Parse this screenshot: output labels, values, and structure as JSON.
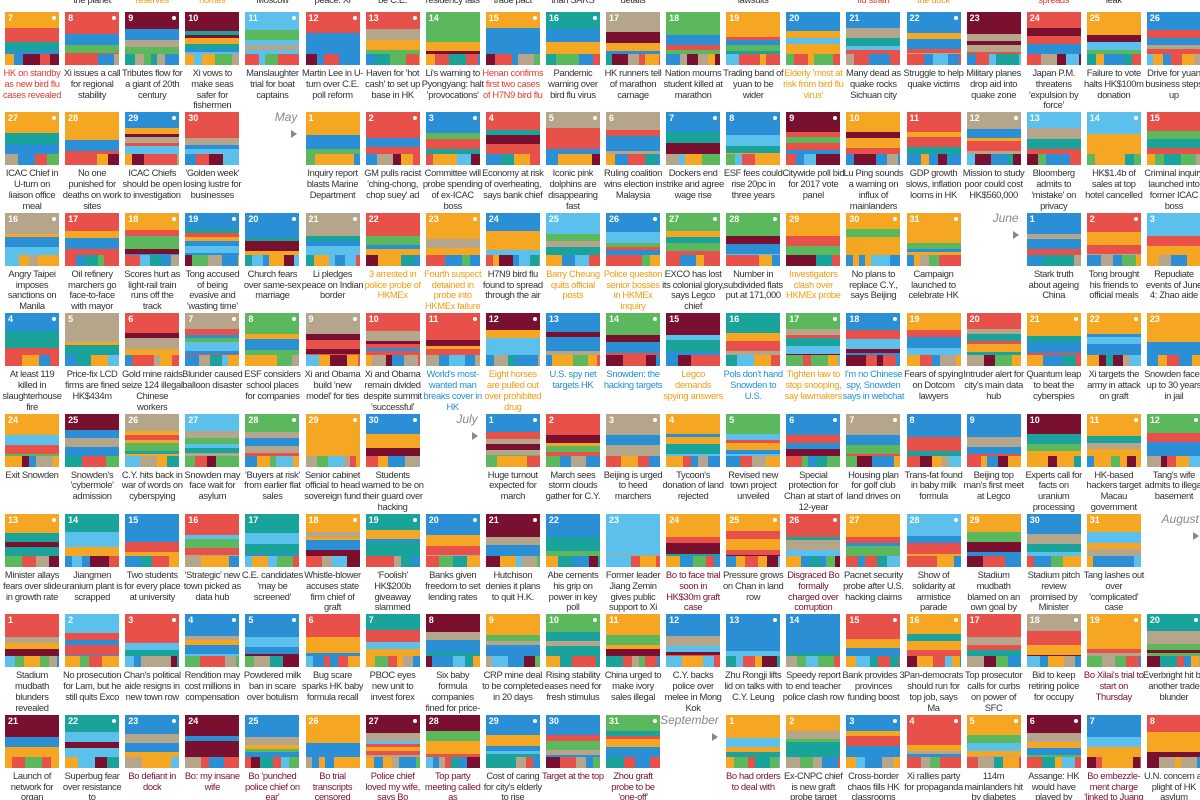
{
  "top_row": [
    null,
    {
      "caption": "the planet"
    },
    {
      "caption": "reserves",
      "color": "#f39c12"
    },
    {
      "caption": "homes",
      "color": "#f39c12"
    },
    {
      "caption": "Moscow"
    },
    {
      "caption": "peace: Xi"
    },
    {
      "caption": "be C.E."
    },
    {
      "caption": "residency fails"
    },
    {
      "caption": "trade pact"
    },
    {
      "caption": "than SARS"
    },
    {
      "caption": "details"
    },
    null,
    {
      "caption": "lawsuits"
    },
    null,
    {
      "caption": "flu strain",
      "color": "#e03c31"
    },
    {
      "caption": "the dock",
      "color": "#f39c12"
    },
    null,
    {
      "caption": "spreads",
      "color": "#e03c31"
    },
    {
      "caption": "leak"
    },
    null
  ],
  "rows": [
    [
      {
        "day": 7,
        "caption": "HK on standby as new bird flu cases revealed",
        "color": "#e03c31"
      },
      {
        "day": 8,
        "caption": "Xi issues a call for regional stability"
      },
      {
        "day": 9,
        "caption": "Tributes flow for a giant of 20th century"
      },
      {
        "day": 10,
        "caption": "Xi vows to make seas safer for fishermen"
      },
      {
        "day": 11,
        "caption": "Manslaughter trial for boat captains"
      },
      {
        "day": 12,
        "caption": "Martin Lee in U-turn over C.E. poll reform"
      },
      {
        "day": 13,
        "caption": "Haven for 'hot cash' to set up base in HK"
      },
      {
        "day": 14,
        "caption": "Li's warning to Pyongyang: halt 'provocations'"
      },
      {
        "day": 15,
        "caption": "Henan confirms first two cases of H7N9 bird flu",
        "color": "#e03c31"
      },
      {
        "day": 16,
        "caption": "Pandemic warning over bird flu virus"
      },
      {
        "day": 17,
        "caption": "HK runners tell of marathon carnage"
      },
      {
        "day": 18,
        "caption": "Nation mourns student killed at marathon"
      },
      {
        "day": 19,
        "caption": "Trading band of yuan to be wider"
      },
      {
        "day": 20,
        "caption": "Elderly 'most at risk from bird flu virus'",
        "color": "#f39c12"
      },
      {
        "day": 21,
        "caption": "Many dead as quake rocks Sichuan city"
      },
      {
        "day": 22,
        "caption": "Struggle to help quake victims"
      },
      {
        "day": 23,
        "caption": "Military planes drop aid into quake zone"
      },
      {
        "day": 24,
        "caption": "Japan P.M. threatens 'expulsion by force'"
      },
      {
        "day": 25,
        "caption": "Failure to vote halts HK$100m donation"
      },
      {
        "day": 26,
        "caption": "Drive for yuan business steps up"
      }
    ],
    [
      {
        "day": 27,
        "caption": "ICAC Chief in U-turn on liaison office meal"
      },
      {
        "day": 28,
        "caption": "No one punished for deaths on work sites"
      },
      {
        "day": 29,
        "caption": "ICAC Chiefs should be open to investigation"
      },
      {
        "day": 30,
        "caption": "'Golden week' losing lustre for businesses"
      },
      {
        "month": "May"
      },
      {
        "day": 1,
        "caption": "Inquiry report blasts Marine Department"
      },
      {
        "day": 2,
        "caption": "GM pulls racist 'ching-chong, chop suey' ad"
      },
      {
        "day": 3,
        "caption": "Committee will probe spending of ex-ICAC boss"
      },
      {
        "day": 4,
        "caption": "Economy at risk of overheating, says bank chief"
      },
      {
        "day": 5,
        "caption": "Iconic pink dolphins are disappearing fast"
      },
      {
        "day": 6,
        "caption": "Ruling coalition wins election in Malaysia"
      },
      {
        "day": 7,
        "caption": "Dockers end strike and agree wage rise"
      },
      {
        "day": 8,
        "caption": "ESF fees could rise 20pc in three years"
      },
      {
        "day": 9,
        "caption": "Citywide poll bid for 2017 vote panel"
      },
      {
        "day": 10,
        "caption": "Lu Ping sounds a warning on influx of mainlanders"
      },
      {
        "day": 11,
        "caption": "GDP growth slows, inflation looms in HK"
      },
      {
        "day": 12,
        "caption": "Mission to study poor could cost HK$560,000"
      },
      {
        "day": 13,
        "caption": "Bloomberg admits to 'mistake' on privacy"
      },
      {
        "day": 14,
        "caption": "HK$1.4b of sales at top hotel cancelled"
      },
      {
        "day": 15,
        "caption": "Criminal inquiry launched into former ICAC boss"
      }
    ],
    [
      {
        "day": 16,
        "caption": "Angry Taipei imposes sanctions on Manila"
      },
      {
        "day": 17,
        "caption": "Oil refinery marchers go face-to-face with mayor"
      },
      {
        "day": 18,
        "caption": "Scores hurt as light-rail train runs off the track"
      },
      {
        "day": 19,
        "caption": "Tong accused of being evasive and 'wasting time'"
      },
      {
        "day": 20,
        "caption": "Church fears over same-sex marriage"
      },
      {
        "day": 21,
        "caption": "Li pledges peace on Indian border"
      },
      {
        "day": 22,
        "caption": "3 arrested in police probe of HKMEx",
        "color": "#f39c12"
      },
      {
        "day": 23,
        "caption": "Fourth suspect detained in probe into HKMEx failure",
        "color": "#f39c12"
      },
      {
        "day": 24,
        "caption": "H7N9 bird flu found to spread through the air"
      },
      {
        "day": 25,
        "caption": "Barry Cheung quits official posts",
        "color": "#f39c12"
      },
      {
        "day": 26,
        "caption": "Police question senior bosses in HKMEx inquiry",
        "color": "#f39c12"
      },
      {
        "day": 27,
        "caption": "EXCO has lost its colonial glory, says Legco chief"
      },
      {
        "day": 28,
        "caption": "Number in subdivided flats put at 171,000"
      },
      {
        "day": 29,
        "caption": "Investigators clash over HKMEx probe",
        "color": "#f39c12"
      },
      {
        "day": 30,
        "caption": "No plans to replace C.Y., says Beijing"
      },
      {
        "day": 31,
        "caption": "Campaign launched to celebrate HK"
      },
      {
        "month": "June"
      },
      {
        "day": 1,
        "caption": "Stark truth about ageing China"
      },
      {
        "day": 2,
        "caption": "Tong brought his friends to official meals"
      },
      {
        "day": 3,
        "caption": "Repudiate events of June 4: Zhao aide"
      }
    ],
    [
      {
        "day": 4,
        "caption": "At least 119 killed in slaughterhouse fire"
      },
      {
        "day": 5,
        "caption": "Price-fix LCD firms are fined HK$434m"
      },
      {
        "day": 6,
        "caption": "Gold mine raids seize 124 illegal Chinese workers"
      },
      {
        "day": 7,
        "caption": "Blunder caused balloon disaster"
      },
      {
        "day": 8,
        "caption": "ESF considers school places for companies"
      },
      {
        "day": 9,
        "caption": "Xi and Obama build 'new model' for ties"
      },
      {
        "day": 10,
        "caption": "Xi and Obama remain divided despite summit 'successful'"
      },
      {
        "day": 11,
        "caption": "World's most-wanted man breaks cover in HK",
        "color": "#1e90d6"
      },
      {
        "day": 12,
        "caption": "Eight horses are pulled out over prohibited drug",
        "color": "#f39c12"
      },
      {
        "day": 13,
        "caption": "U.S. spy net targets HK",
        "color": "#1e90d6"
      },
      {
        "day": 14,
        "caption": "Snowden: the hacking targets",
        "color": "#1e90d6"
      },
      {
        "day": 15,
        "caption": "Legco demands spying answers",
        "color": "#f39c12"
      },
      {
        "day": 16,
        "caption": "Pols don't hand Snowden to U.S.",
        "color": "#1e90d6"
      },
      {
        "day": 17,
        "caption": "Tighten law to stop snooping, say lawmakers",
        "color": "#f39c12"
      },
      {
        "day": 18,
        "caption": "I'm no Chinese spy, Snowden says in webchat",
        "color": "#1e90d6"
      },
      {
        "day": 19,
        "caption": "Fears of spying on Dotcom lawyers"
      },
      {
        "day": 20,
        "caption": "Intruder alert for city's main data hub"
      },
      {
        "day": 21,
        "caption": "Quantum leap to beat the cyberspies"
      },
      {
        "day": 22,
        "caption": "Xi targets the army in attack on graft"
      },
      {
        "day": 23,
        "caption": "Snowden faces up to 30 years in jail"
      }
    ],
    [
      {
        "day": 24,
        "caption": "Exit Snowden"
      },
      {
        "day": 25,
        "caption": "Snowden's 'cybermole' admission"
      },
      {
        "day": 26,
        "caption": "C.Y. hits back in war of words on cyberspying"
      },
      {
        "day": 27,
        "caption": "Snowden may face wait for asylum"
      },
      {
        "day": 28,
        "caption": "'Buyers at risk' from earlier flat sales"
      },
      {
        "day": 29,
        "caption": "Senior cabinet official to head sovereign fund"
      },
      {
        "day": 30,
        "caption": "Students warned to be on their guard over hacking"
      },
      {
        "month": "July"
      },
      {
        "day": 1,
        "caption": "Huge turnout expected for march"
      },
      {
        "day": 2,
        "caption": "March sees storm clouds gather for C.Y."
      },
      {
        "day": 3,
        "caption": "Beijing is urged to heed marchers"
      },
      {
        "day": 4,
        "caption": "Tycoon's donation of land rejected"
      },
      {
        "day": 5,
        "caption": "Revised new town project unveiled"
      },
      {
        "day": 6,
        "caption": "Special protection for Chan at start of 12-year sentence"
      },
      {
        "day": 7,
        "caption": "Housing plan for golf club land drives on"
      },
      {
        "day": 8,
        "caption": "Trans-fat found in baby milk formula"
      },
      {
        "day": 9,
        "caption": "Beijing top man's first meet at Legco"
      },
      {
        "day": 10,
        "caption": "Experts call for facts on uranium processing plant"
      },
      {
        "day": 11,
        "caption": "HK-based hackers target Macau government"
      },
      {
        "day": 12,
        "caption": "Tang's wife admits to illegal basement"
      }
    ],
    [
      {
        "day": 13,
        "caption": "Minister allays fears over slide in growth rate"
      },
      {
        "day": 14,
        "caption": "Jiangmen uranium plant is scrapped"
      },
      {
        "day": 15,
        "caption": "Two students for every place at university"
      },
      {
        "day": 16,
        "caption": "'Strategic' new town picked as data hub"
      },
      {
        "day": 17,
        "caption": "C.E. candidates 'may be screened'"
      },
      {
        "day": 18,
        "caption": "Whistle-blower accuses state firm chief of graft"
      },
      {
        "day": 19,
        "caption": "'Foolish' HK$200b giveaway slammed"
      },
      {
        "day": 20,
        "caption": "Banks given freedom to set lending rates"
      },
      {
        "day": 21,
        "caption": "Hutchison denies it plans to quit H.K."
      },
      {
        "day": 22,
        "caption": "Abe cements his grip on power in key poll"
      },
      {
        "day": 23,
        "caption": "Former leader Jiang Zemin gives public support to Xi"
      },
      {
        "day": 24,
        "caption": "Bo to face trial soon in HK$30m graft case",
        "color": "#7a1030"
      },
      {
        "day": 25,
        "caption": "Pressure grows on Chan in land row"
      },
      {
        "day": 26,
        "caption": "Disgraced Bo formally charged over corruption",
        "color": "#7a1030"
      },
      {
        "day": 27,
        "caption": "Pacnet security probe after U.S. hacking claims"
      },
      {
        "day": 28,
        "caption": "Show of solidarity at armistice parade"
      },
      {
        "day": 29,
        "caption": "Stadium mudbath blamed on an own goal by bosses"
      },
      {
        "day": 30,
        "caption": "Stadium pitch review promised by Minister"
      },
      {
        "day": 31,
        "caption": "Tang lashes out over 'complicated' case"
      },
      {
        "month": "August"
      }
    ],
    [
      {
        "day": 1,
        "caption": "Stadium mudbath blunders revealed"
      },
      {
        "day": 2,
        "caption": "No prosecution for Lam, but he still quits Exco"
      },
      {
        "day": 3,
        "caption": "Chan's political aide resigns in new town row"
      },
      {
        "day": 4,
        "caption": "Rendition may cost millions in compensation"
      },
      {
        "day": 5,
        "caption": "Powdered milk ban in scare over botulism"
      },
      {
        "day": 6,
        "caption": "Bug scare sparks HK baby formula recall"
      },
      {
        "day": 7,
        "caption": "PBOC eyes new unit to invest forex"
      },
      {
        "day": 8,
        "caption": "Six baby formula companies fined for price-fixing"
      },
      {
        "day": 9,
        "caption": "CRP mine deal to be completed in 20 days"
      },
      {
        "day": 10,
        "caption": "Rising stability eases need for fresh stimulus"
      },
      {
        "day": 11,
        "caption": "China urged to make ivory sales illegal"
      },
      {
        "day": 12,
        "caption": "C.Y. backs police over melee in Mong Kok"
      },
      {
        "day": 13,
        "caption": "Zhu Rongji lifts lid on talks with C.Y. Leung"
      },
      {
        "day": 14,
        "caption": "Speedy report to end teacher police clash row"
      },
      {
        "day": 15,
        "caption": "Bank provides 3 provinces funding boost"
      },
      {
        "day": 16,
        "caption": "Pan-democrats should run for top job, says Ma"
      },
      {
        "day": 17,
        "caption": "Top prosecutor calls for curbs on power of SFC"
      },
      {
        "day": 18,
        "caption": "Bid to keep retiring police for occupy"
      },
      {
        "day": 19,
        "caption": "Bo Xilai's trial to start on Thursday",
        "color": "#7a1030"
      },
      {
        "day": 20,
        "caption": "Everbright hit by another trade blunder"
      }
    ],
    [
      {
        "day": 21,
        "caption": "Launch of network for organ"
      },
      {
        "day": 22,
        "caption": "Superbug fear over resistance to"
      },
      {
        "day": 23,
        "caption": "Bo defiant in dock",
        "color": "#7a1030"
      },
      {
        "day": 24,
        "caption": "Bo: my insane wife",
        "color": "#7a1030"
      },
      {
        "day": 25,
        "caption": "Bo 'punched police chief on ear'",
        "color": "#7a1030"
      },
      {
        "day": 26,
        "caption": "Bo trial transcripts censored",
        "color": "#7a1030"
      },
      {
        "day": 27,
        "caption": "Police chief loved my wife, says Bo",
        "color": "#7a1030"
      },
      {
        "day": 28,
        "caption": "Top party meeting called as",
        "color": "#7a1030"
      },
      {
        "day": 29,
        "caption": "Cost of caring for city's elderly to rise"
      },
      {
        "day": 30,
        "caption": "Target at the top",
        "color": "#7a1030"
      },
      {
        "day": 31,
        "caption": "Zhou graft probe to be 'one-off'",
        "color": "#7a1030"
      },
      {
        "month": "September"
      },
      {
        "day": 1,
        "caption": "Bo had orders to deal with",
        "color": "#7a1030"
      },
      {
        "day": 2,
        "caption": "Ex-CNPC chief is new graft probe target"
      },
      {
        "day": 3,
        "caption": "Cross-border chaos fills HK classrooms"
      },
      {
        "day": 4,
        "caption": "Xi rallies party for propaganda"
      },
      {
        "day": 5,
        "caption": "114m mainlanders hit by diabetes"
      },
      {
        "day": 6,
        "caption": "Assange: HK would have played by"
      },
      {
        "day": 7,
        "caption": "Bo embezzle-ment charge 'linked to Juang",
        "color": "#7a1030"
      },
      {
        "day": 8,
        "caption": "U.N. concern at plight of HK asylum"
      }
    ]
  ]
}
